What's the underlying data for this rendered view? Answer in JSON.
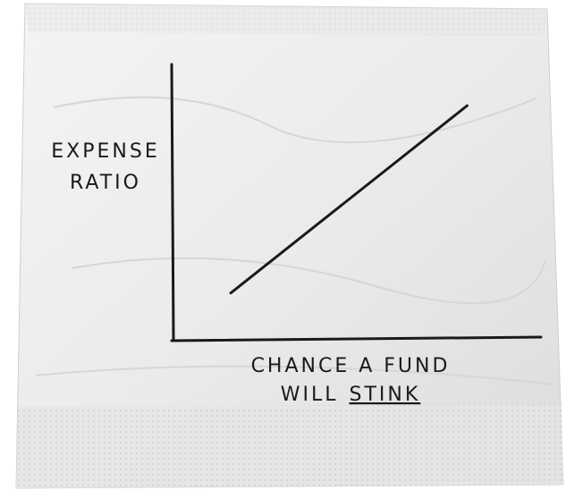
{
  "chart_data": {
    "type": "line",
    "ylabel": [
      "EXPENSE",
      "RATIO"
    ],
    "xlabel": [
      "CHANCE A FUND",
      "WILL"
    ],
    "xlabel_emphasis": "STINK",
    "x": [
      0.16,
      0.8
    ],
    "values": [
      0.17,
      0.85
    ],
    "xlim": [
      0,
      1
    ],
    "ylim": [
      0,
      1
    ],
    "color": "#1a1a1a"
  }
}
